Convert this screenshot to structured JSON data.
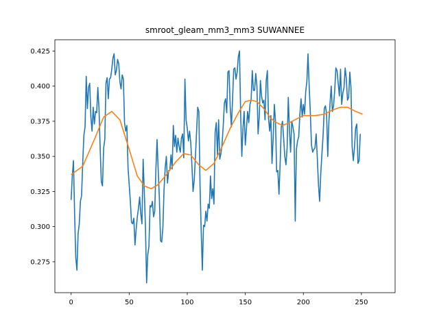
{
  "chart_data": {
    "type": "line",
    "title": "smroot_gleam_mm3_mm3 SUWANNEE",
    "xlabel": "",
    "ylabel": "",
    "xlim": [
      -14,
      279
    ],
    "ylim": [
      0.253,
      0.433
    ],
    "xticks": [
      0,
      50,
      100,
      150,
      200,
      250
    ],
    "yticks": [
      0.275,
      0.3,
      0.325,
      0.35,
      0.375,
      0.4,
      0.425
    ],
    "ytick_labels": [
      "0.275",
      "0.300",
      "0.325",
      "0.350",
      "0.375",
      "0.400",
      "0.425"
    ],
    "grid": false,
    "legend": "none",
    "colors": {
      "raw": "#1f77b4",
      "smooth": "#ff7f0e"
    },
    "series": [
      {
        "key": "raw",
        "points": [
          [
            0,
            0.319
          ],
          [
            1,
            0.336
          ],
          [
            2,
            0.347
          ],
          [
            3,
            0.309
          ],
          [
            4,
            0.278
          ],
          [
            5,
            0.269
          ],
          [
            6,
            0.295
          ],
          [
            7,
            0.302
          ],
          [
            8,
            0.318
          ],
          [
            9,
            0.322
          ],
          [
            10,
            0.346
          ],
          [
            11,
            0.365
          ],
          [
            12,
            0.371
          ],
          [
            13,
            0.407
          ],
          [
            14,
            0.384
          ],
          [
            15,
            0.399
          ],
          [
            16,
            0.402
          ],
          [
            17,
            0.378
          ],
          [
            18,
            0.368
          ],
          [
            19,
            0.385
          ],
          [
            20,
            0.373
          ],
          [
            21,
            0.382
          ],
          [
            22,
            0.381
          ],
          [
            23,
            0.399
          ],
          [
            24,
            0.384
          ],
          [
            25,
            0.356
          ],
          [
            26,
            0.332
          ],
          [
            27,
            0.329
          ],
          [
            28,
            0.356
          ],
          [
            29,
            0.362
          ],
          [
            30,
            0.402
          ],
          [
            31,
            0.406
          ],
          [
            32,
            0.391
          ],
          [
            33,
            0.405
          ],
          [
            34,
            0.406
          ],
          [
            35,
            0.412
          ],
          [
            36,
            0.42
          ],
          [
            37,
            0.423
          ],
          [
            38,
            0.408
          ],
          [
            39,
            0.411
          ],
          [
            40,
            0.419
          ],
          [
            41,
            0.416
          ],
          [
            42,
            0.403
          ],
          [
            43,
            0.398
          ],
          [
            44,
            0.408
          ],
          [
            45,
            0.405
          ],
          [
            46,
            0.374
          ],
          [
            47,
            0.368
          ],
          [
            48,
            0.372
          ],
          [
            49,
            0.342
          ],
          [
            50,
            0.33
          ],
          [
            51,
            0.318
          ],
          [
            52,
            0.303
          ],
          [
            53,
            0.302
          ],
          [
            54,
            0.306
          ],
          [
            55,
            0.287
          ],
          [
            56,
            0.298
          ],
          [
            57,
            0.307
          ],
          [
            58,
            0.313
          ],
          [
            59,
            0.321
          ],
          [
            60,
            0.309
          ],
          [
            61,
            0.302
          ],
          [
            62,
            0.348
          ],
          [
            63,
            0.325
          ],
          [
            64,
            0.3
          ],
          [
            65,
            0.26
          ],
          [
            66,
            0.28
          ],
          [
            67,
            0.286
          ],
          [
            68,
            0.315
          ],
          [
            69,
            0.314
          ],
          [
            70,
            0.318
          ],
          [
            71,
            0.307
          ],
          [
            72,
            0.311
          ],
          [
            73,
            0.341
          ],
          [
            74,
            0.362
          ],
          [
            75,
            0.34
          ],
          [
            76,
            0.32
          ],
          [
            77,
            0.29
          ],
          [
            78,
            0.289
          ],
          [
            79,
            0.299
          ],
          [
            80,
            0.326
          ],
          [
            81,
            0.342
          ],
          [
            82,
            0.35
          ],
          [
            83,
            0.331
          ],
          [
            84,
            0.34
          ],
          [
            85,
            0.34
          ],
          [
            86,
            0.351
          ],
          [
            87,
            0.341
          ],
          [
            88,
            0.372
          ],
          [
            89,
            0.357
          ],
          [
            90,
            0.365
          ],
          [
            91,
            0.353
          ],
          [
            92,
            0.363
          ],
          [
            93,
            0.357
          ],
          [
            94,
            0.353
          ],
          [
            95,
            0.363
          ],
          [
            96,
            0.366
          ],
          [
            97,
            0.349
          ],
          [
            98,
            0.405
          ],
          [
            99,
            0.376
          ],
          [
            100,
            0.37
          ],
          [
            101,
            0.361
          ],
          [
            102,
            0.368
          ],
          [
            103,
            0.36
          ],
          [
            104,
            0.344
          ],
          [
            105,
            0.325
          ],
          [
            106,
            0.333
          ],
          [
            107,
            0.349
          ],
          [
            108,
            0.367
          ],
          [
            109,
            0.385
          ],
          [
            110,
            0.382
          ],
          [
            111,
            0.33
          ],
          [
            112,
            0.297
          ],
          [
            113,
            0.269
          ],
          [
            114,
            0.301
          ],
          [
            115,
            0.3
          ],
          [
            116,
            0.311
          ],
          [
            117,
            0.304
          ],
          [
            118,
            0.316
          ],
          [
            119,
            0.313
          ],
          [
            120,
            0.336
          ],
          [
            121,
            0.32
          ],
          [
            122,
            0.327
          ],
          [
            123,
            0.316
          ],
          [
            124,
            0.367
          ],
          [
            125,
            0.374
          ],
          [
            126,
            0.351
          ],
          [
            127,
            0.376
          ],
          [
            128,
            0.348
          ],
          [
            129,
            0.352
          ],
          [
            130,
            0.359
          ],
          [
            131,
            0.372
          ],
          [
            132,
            0.388
          ],
          [
            133,
            0.391
          ],
          [
            134,
            0.381
          ],
          [
            135,
            0.41
          ],
          [
            136,
            0.411
          ],
          [
            137,
            0.385
          ],
          [
            138,
            0.371
          ],
          [
            139,
            0.39
          ],
          [
            140,
            0.412
          ],
          [
            141,
            0.413
          ],
          [
            142,
            0.405
          ],
          [
            143,
            0.41
          ],
          [
            144,
            0.421
          ],
          [
            145,
            0.425
          ],
          [
            146,
            0.38
          ],
          [
            147,
            0.35
          ],
          [
            148,
            0.37
          ],
          [
            149,
            0.382
          ],
          [
            150,
            0.358
          ],
          [
            151,
            0.37
          ],
          [
            152,
            0.382
          ],
          [
            153,
            0.374
          ],
          [
            154,
            0.387
          ],
          [
            155,
            0.39
          ],
          [
            156,
            0.411
          ],
          [
            157,
            0.397
          ],
          [
            158,
            0.397
          ],
          [
            159,
            0.409
          ],
          [
            160,
            0.4
          ],
          [
            161,
            0.366
          ],
          [
            162,
            0.378
          ],
          [
            163,
            0.404
          ],
          [
            164,
            0.393
          ],
          [
            165,
            0.388
          ],
          [
            166,
            0.39
          ],
          [
            167,
            0.376
          ],
          [
            168,
            0.404
          ],
          [
            169,
            0.411
          ],
          [
            170,
            0.377
          ],
          [
            171,
            0.368
          ],
          [
            172,
            0.379
          ],
          [
            173,
            0.345
          ],
          [
            174,
            0.363
          ],
          [
            175,
            0.387
          ],
          [
            176,
            0.375
          ],
          [
            177,
            0.339
          ],
          [
            178,
            0.34
          ],
          [
            179,
            0.323
          ],
          [
            180,
            0.345
          ],
          [
            181,
            0.371
          ],
          [
            182,
            0.375
          ],
          [
            183,
            0.363
          ],
          [
            184,
            0.35
          ],
          [
            185,
            0.344
          ],
          [
            186,
            0.356
          ],
          [
            187,
            0.392
          ],
          [
            188,
            0.369
          ],
          [
            189,
            0.353
          ],
          [
            190,
            0.375
          ],
          [
            191,
            0.371
          ],
          [
            192,
            0.366
          ],
          [
            193,
            0.304
          ],
          [
            194,
            0.355
          ],
          [
            195,
            0.361
          ],
          [
            196,
            0.364
          ],
          [
            197,
            0.38
          ],
          [
            198,
            0.391
          ],
          [
            199,
            0.378
          ],
          [
            200,
            0.387
          ],
          [
            201,
            0.38
          ],
          [
            202,
            0.396
          ],
          [
            203,
            0.403
          ],
          [
            204,
            0.423
          ],
          [
            205,
            0.4
          ],
          [
            206,
            0.381
          ],
          [
            207,
            0.358
          ],
          [
            208,
            0.353
          ],
          [
            209,
            0.355
          ],
          [
            210,
            0.356
          ],
          [
            211,
            0.366
          ],
          [
            212,
            0.349
          ],
          [
            213,
            0.33
          ],
          [
            214,
            0.318
          ],
          [
            215,
            0.338
          ],
          [
            216,
            0.352
          ],
          [
            217,
            0.365
          ],
          [
            218,
            0.384
          ],
          [
            219,
            0.386
          ],
          [
            220,
            0.38
          ],
          [
            221,
            0.35
          ],
          [
            222,
            0.375
          ],
          [
            223,
            0.388
          ],
          [
            224,
            0.4
          ],
          [
            225,
            0.382
          ],
          [
            226,
            0.386
          ],
          [
            227,
            0.397
          ],
          [
            228,
            0.413
          ],
          [
            229,
            0.411
          ],
          [
            230,
            0.402
          ],
          [
            231,
            0.393
          ],
          [
            232,
            0.412
          ],
          [
            233,
            0.387
          ],
          [
            234,
            0.395
          ],
          [
            235,
            0.399
          ],
          [
            236,
            0.413
          ],
          [
            237,
            0.405
          ],
          [
            238,
            0.39
          ],
          [
            239,
            0.392
          ],
          [
            240,
            0.41
          ],
          [
            241,
            0.399
          ],
          [
            242,
            0.357
          ],
          [
            243,
            0.347
          ],
          [
            244,
            0.356
          ],
          [
            245,
            0.37
          ],
          [
            246,
            0.373
          ],
          [
            247,
            0.345
          ],
          [
            248,
            0.347
          ],
          [
            249,
            0.366
          ]
        ]
      },
      {
        "key": "smooth",
        "points": [
          [
            0,
            0.337
          ],
          [
            10,
            0.343
          ],
          [
            20,
            0.362
          ],
          [
            28,
            0.378
          ],
          [
            35,
            0.382
          ],
          [
            42,
            0.376
          ],
          [
            50,
            0.355
          ],
          [
            57,
            0.336
          ],
          [
            63,
            0.329
          ],
          [
            69,
            0.327
          ],
          [
            75,
            0.33
          ],
          [
            82,
            0.337
          ],
          [
            90,
            0.346
          ],
          [
            97,
            0.352
          ],
          [
            103,
            0.351
          ],
          [
            110,
            0.344
          ],
          [
            116,
            0.34
          ],
          [
            123,
            0.345
          ],
          [
            130,
            0.357
          ],
          [
            137,
            0.37
          ],
          [
            144,
            0.381
          ],
          [
            150,
            0.389
          ],
          [
            155,
            0.39
          ],
          [
            160,
            0.389
          ],
          [
            166,
            0.384
          ],
          [
            172,
            0.377
          ],
          [
            177,
            0.374
          ],
          [
            182,
            0.372
          ],
          [
            188,
            0.374
          ],
          [
            195,
            0.377
          ],
          [
            200,
            0.379
          ],
          [
            210,
            0.379
          ],
          [
            218,
            0.38
          ],
          [
            225,
            0.383
          ],
          [
            232,
            0.385
          ],
          [
            238,
            0.385
          ],
          [
            245,
            0.382
          ],
          [
            251,
            0.38
          ]
        ]
      }
    ]
  }
}
